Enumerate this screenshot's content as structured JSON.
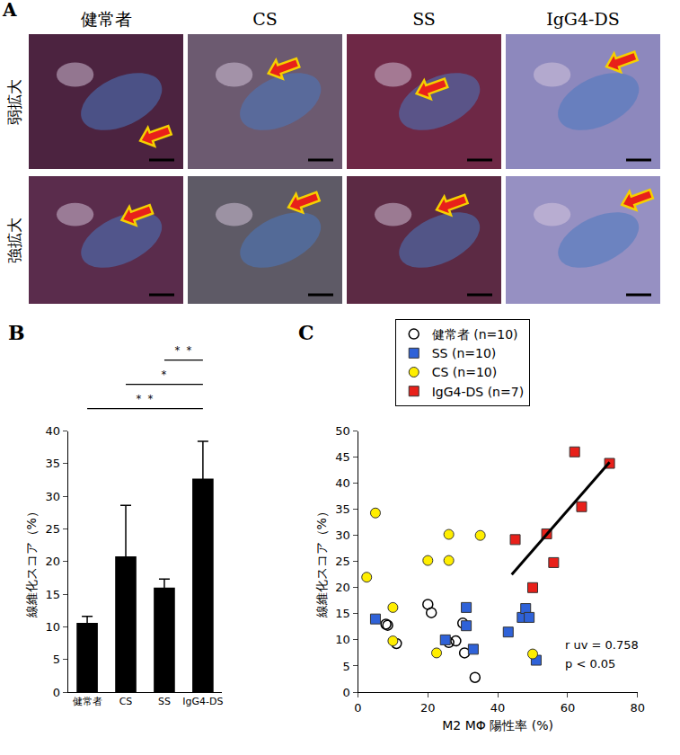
{
  "panel_a": {
    "letter": "A",
    "columns": [
      "健常者",
      "CS",
      "SS",
      "IgG4-DS"
    ],
    "rows": [
      "弱拡大",
      "強拡大"
    ]
  },
  "chart_data": [
    {
      "letter": "B",
      "type": "bar",
      "categories": [
        "健常者",
        "CS",
        "SS",
        "IgG4-DS"
      ],
      "values": [
        10.6,
        20.8,
        16.0,
        32.7
      ],
      "errors": [
        1.0,
        7.8,
        1.3,
        5.7
      ],
      "color": "#000000",
      "ylabel": "線維化スコア（%）",
      "ylim": [
        0,
        40
      ],
      "yticks": [
        0,
        5,
        10,
        15,
        20,
        25,
        30,
        35,
        40
      ],
      "grid": false,
      "significance": [
        {
          "from": "SS",
          "to": "IgG4-DS",
          "label": "＊＊"
        },
        {
          "from": "CS",
          "to": "IgG4-DS",
          "label": "＊"
        },
        {
          "from": "健常者",
          "to": "IgG4-DS",
          "label": "＊＊"
        }
      ]
    },
    {
      "letter": "C",
      "type": "scatter",
      "xlabel": "M2 MΦ 陽性率 (%)",
      "ylabel": "線維化スコア（%）",
      "xlim": [
        0,
        80
      ],
      "xticks": [
        0,
        20,
        40,
        60,
        80
      ],
      "ylim": [
        0,
        50
      ],
      "yticks": [
        0,
        5,
        10,
        15,
        20,
        25,
        30,
        35,
        40,
        45,
        50
      ],
      "grid": false,
      "legend": "top right",
      "series": [
        {
          "name": "健常者 (n=10)",
          "color": "#000000",
          "marker": "circle-open",
          "x": [
            8,
            8.5,
            11,
            20,
            21,
            26,
            28,
            30,
            30.5,
            33.5
          ],
          "y": [
            13,
            12.8,
            9.3,
            16.8,
            15.2,
            9.5,
            9.8,
            13.2,
            7.5,
            2.8
          ]
        },
        {
          "name": "SS (n=10)",
          "color": "#2f62d8",
          "marker": "square",
          "x": [
            5,
            25,
            31,
            31,
            33,
            43,
            47,
            48,
            49,
            51
          ],
          "y": [
            14,
            10,
            16.2,
            12.7,
            8.2,
            11.5,
            14.3,
            16,
            14.3,
            6.1
          ]
        },
        {
          "name": "CS (n=10)",
          "color": "#ffee00",
          "marker": "circle",
          "x": [
            5,
            2.5,
            10,
            10,
            20,
            26,
            26,
            35,
            22.5,
            50
          ],
          "y": [
            34.3,
            22,
            16.2,
            9.8,
            25.2,
            30.2,
            25.2,
            30,
            7.5,
            7.3
          ]
        },
        {
          "name": "IgG4-DS (n=7)",
          "color": "#e8201a",
          "marker": "square",
          "x": [
            45,
            50,
            54,
            56,
            62,
            64,
            72
          ],
          "y": [
            29.2,
            20,
            30.3,
            24.8,
            46,
            35.5,
            43.8
          ]
        }
      ],
      "fit_line": {
        "x": [
          44,
          72
        ],
        "y": [
          22.5,
          44
        ]
      },
      "annotations": [
        "r uv = 0.758",
        "p < 0.05"
      ]
    }
  ]
}
